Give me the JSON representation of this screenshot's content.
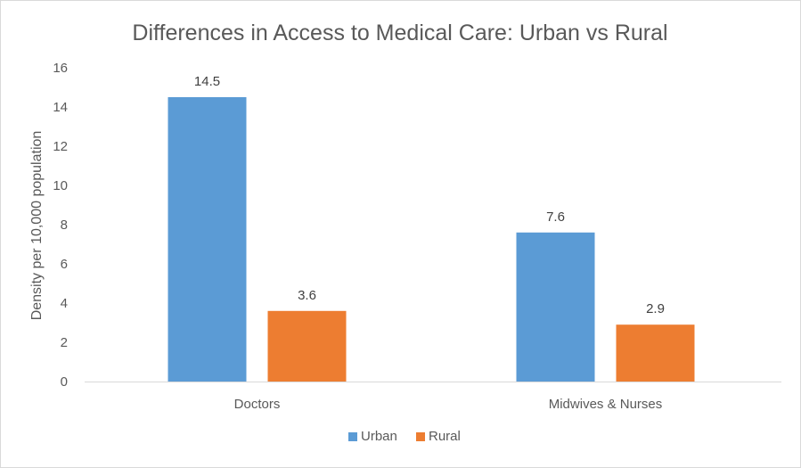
{
  "chart_data": {
    "type": "bar",
    "title": "Differences in Access to Medical Care: Urban vs Rural",
    "ylabel": "Density per 10,000 population",
    "xlabel": "",
    "categories": [
      "Doctors",
      "Midwives & Nurses"
    ],
    "series": [
      {
        "name": "Urban",
        "values": [
          14.5,
          7.6
        ],
        "color": "#5b9bd5"
      },
      {
        "name": "Rural",
        "values": [
          3.6,
          2.9
        ],
        "color": "#ed7d31"
      }
    ],
    "ylim": [
      0,
      16
    ],
    "yticks": [
      0,
      2,
      4,
      6,
      8,
      10,
      12,
      14,
      16
    ],
    "grid": false,
    "legend": "bottom",
    "data_labels": true
  }
}
